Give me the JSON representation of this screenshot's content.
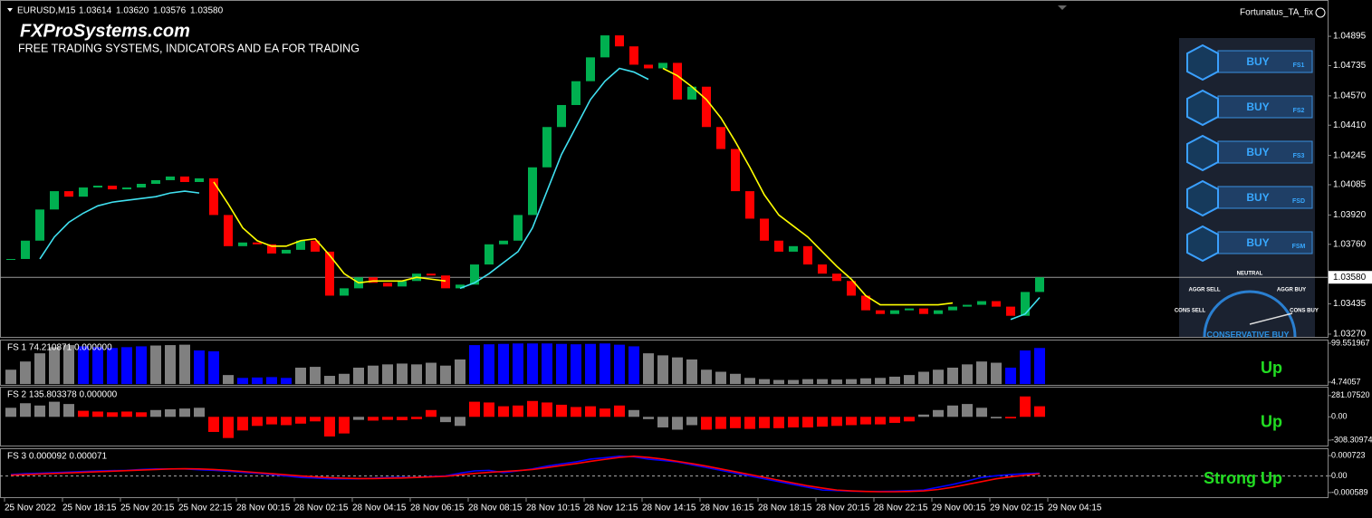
{
  "header": {
    "symbol": "EURUSD,M15",
    "open": "1.03614",
    "high": "1.03620",
    "low": "1.03576",
    "close": "1.03580"
  },
  "watermark": {
    "title": "FXProSystems.com",
    "subtitle": "FREE TRADING SYSTEMS, INDICATORS AND EA FOR TRADING"
  },
  "indicator_name": "Fortunatus_TA_fix",
  "price_chart": {
    "type": "candlestick",
    "candles": {
      "close": [
        1.0368,
        1.0378,
        1.0395,
        1.0405,
        1.0402,
        1.0407,
        1.0408,
        1.0406,
        1.0407,
        1.0409,
        1.0411,
        1.0413,
        1.041,
        1.0412,
        1.0392,
        1.0375,
        1.0377,
        1.0376,
        1.0371,
        1.0373,
        1.0378,
        1.0372,
        1.0348,
        1.0352,
        1.0358,
        1.0355,
        1.0353,
        1.0356,
        1.036,
        1.0359,
        1.0352,
        1.0354,
        1.0365,
        1.0376,
        1.0378,
        1.0392,
        1.0418,
        1.044,
        1.0452,
        1.0465,
        1.0478,
        1.049,
        1.0484,
        1.0474,
        1.0472,
        1.0475,
        1.0455,
        1.0462,
        1.044,
        1.0428,
        1.0405,
        1.039,
        1.0378,
        1.0372,
        1.0375,
        1.0365,
        1.036,
        1.0356,
        1.0348,
        1.034,
        1.0338,
        1.034,
        1.0341,
        1.0338,
        1.034,
        1.0342,
        1.0343,
        1.0345,
        1.0342,
        1.0337,
        1.035,
        1.0358
      ],
      "up_color": "#00b050",
      "down_color": "#ff0000"
    },
    "lines": [
      {
        "color": "#40e0f0",
        "values": [
          null,
          null,
          1.0368,
          1.038,
          1.0388,
          1.0393,
          1.0397,
          1.0399,
          1.04,
          1.0401,
          1.0402,
          1.0404,
          1.0405,
          1.0404,
          null,
          null,
          null,
          null,
          null,
          null,
          null,
          null,
          null,
          null,
          null,
          null,
          null,
          null,
          null,
          null,
          null,
          1.0352,
          1.0355,
          1.036,
          1.0366,
          1.0372,
          1.0385,
          1.0405,
          1.0425,
          1.044,
          1.0455,
          1.0465,
          1.0472,
          1.047,
          1.0466,
          null,
          null,
          null,
          null,
          null,
          null,
          null,
          null,
          null,
          null,
          null,
          null,
          null,
          null,
          null,
          null,
          null,
          null,
          null,
          null,
          null,
          null,
          null,
          null,
          1.0335,
          1.0338,
          1.0347
        ]
      },
      {
        "color": "#ffff00",
        "values": [
          null,
          null,
          null,
          null,
          null,
          null,
          null,
          null,
          null,
          null,
          null,
          null,
          null,
          null,
          1.041,
          1.0398,
          1.0385,
          1.0378,
          1.0375,
          1.0375,
          1.0378,
          1.0379,
          1.037,
          1.036,
          1.0355,
          1.0356,
          1.0356,
          1.0356,
          1.0358,
          1.0357,
          1.0356,
          null,
          null,
          null,
          null,
          null,
          null,
          null,
          null,
          null,
          null,
          null,
          null,
          null,
          null,
          1.0472,
          1.0468,
          1.0462,
          1.0455,
          1.0445,
          1.0432,
          1.0418,
          1.0403,
          1.0392,
          1.0386,
          1.038,
          1.0372,
          1.0364,
          1.0357,
          1.0348,
          1.0343,
          1.0343,
          1.0343,
          1.0343,
          1.0343,
          1.0344,
          null,
          null,
          null,
          null,
          null,
          null
        ]
      }
    ],
    "ylim": [
      1.03255,
      1.05093
    ],
    "yticks": [
      1.04895,
      1.04735,
      {
        "value": 1.0457,
        "label": "1.04570"
      },
      {
        "value": 1.0441,
        "label": "1.04410"
      },
      1.04245,
      1.04085,
      {
        "value": 1.0392,
        "label": "1.03920"
      },
      {
        "value": 1.0376,
        "label": "1.03760"
      },
      1.03435,
      {
        "value": 1.0327,
        "label": "1.03270"
      }
    ],
    "current_price": {
      "value": 1.0358,
      "label": "1.03580"
    }
  },
  "indicators": [
    {
      "type": "histogram",
      "label": "FS 1 74.210871 0.000000",
      "signal": "Up",
      "ylim": [
        -2,
        104
      ],
      "yticks": [
        99.551967,
        4.74057
      ],
      "values": [
        35,
        55,
        75,
        90,
        95,
        92,
        90,
        88,
        90,
        92,
        94,
        95,
        96,
        82,
        80,
        22,
        15,
        16,
        17,
        15,
        40,
        42,
        20,
        25,
        40,
        45,
        48,
        50,
        48,
        52,
        45,
        60,
        95,
        97,
        98,
        99,
        99,
        99,
        98,
        97,
        98,
        99,
        96,
        92,
        75,
        70,
        65,
        60,
        35,
        30,
        25,
        15,
        12,
        10,
        10,
        12,
        12,
        11,
        12,
        14,
        15,
        18,
        22,
        30,
        35,
        40,
        48,
        55,
        52,
        40,
        82,
        88
      ],
      "colors": [
        "gray",
        "gray",
        "gray",
        "gray",
        "gray",
        "blue",
        "blue",
        "blue",
        "blue",
        "blue",
        "gray",
        "gray",
        "gray",
        "blue",
        "blue",
        "gray",
        "blue",
        "blue",
        "blue",
        "blue",
        "gray",
        "gray",
        "gray",
        "gray",
        "gray",
        "gray",
        "gray",
        "gray",
        "gray",
        "gray",
        "gray",
        "gray",
        "blue",
        "blue",
        "blue",
        "blue",
        "blue",
        "blue",
        "blue",
        "blue",
        "blue",
        "blue",
        "blue",
        "blue",
        "gray",
        "gray",
        "gray",
        "gray",
        "gray",
        "gray",
        "gray",
        "gray",
        "gray",
        "gray",
        "gray",
        "gray",
        "gray",
        "gray",
        "gray",
        "gray",
        "gray",
        "gray",
        "gray",
        "gray",
        "gray",
        "gray",
        "gray",
        "gray",
        "gray",
        "blue",
        "blue",
        "blue"
      ]
    },
    {
      "type": "histogram",
      "label": "FS 2 135.803378 0.000000",
      "signal": "Up",
      "ylim": [
        -380,
        375
      ],
      "yticks": [
        {
          "value": 281.0752,
          "label": "281.07520"
        },
        {
          "value": 0,
          "label": "0.00"
        },
        -308.30974
      ],
      "values": [
        120,
        180,
        150,
        200,
        170,
        80,
        70,
        60,
        70,
        60,
        90,
        100,
        110,
        120,
        -200,
        -280,
        -180,
        -120,
        -100,
        -110,
        -90,
        -60,
        -260,
        -220,
        -40,
        -50,
        -40,
        -45,
        -30,
        90,
        -70,
        -120,
        200,
        190,
        140,
        150,
        210,
        190,
        160,
        130,
        140,
        110,
        150,
        90,
        -30,
        -140,
        -170,
        -110,
        -170,
        -160,
        -150,
        -160,
        -150,
        -150,
        -140,
        -140,
        -130,
        -120,
        -110,
        -100,
        -100,
        -80,
        -60,
        30,
        90,
        150,
        170,
        120,
        -20,
        -20,
        270,
        140
      ],
      "colors": [
        "gray",
        "gray",
        "gray",
        "gray",
        "gray",
        "red",
        "red",
        "red",
        "red",
        "red",
        "gray",
        "gray",
        "gray",
        "gray",
        "red",
        "red",
        "red",
        "red",
        "red",
        "red",
        "red",
        "red",
        "red",
        "red",
        "gray",
        "red",
        "red",
        "red",
        "red",
        "red",
        "gray",
        "gray",
        "red",
        "red",
        "red",
        "red",
        "red",
        "red",
        "red",
        "red",
        "red",
        "red",
        "red",
        "gray",
        "gray",
        "gray",
        "gray",
        "gray",
        "red",
        "red",
        "red",
        "red",
        "red",
        "red",
        "red",
        "red",
        "red",
        "red",
        "red",
        "red",
        "red",
        "red",
        "red",
        "gray",
        "gray",
        "gray",
        "gray",
        "gray",
        "gray",
        "red",
        "red",
        "red"
      ]
    },
    {
      "type": "line",
      "label": "FS 3 0.000092 0.000071",
      "signal": "Strong Up",
      "ylim": [
        -0.000753,
        0.00092
      ],
      "yticks": [
        0.000723,
        {
          "value": 0,
          "label": "0.00"
        },
        -0.000589
      ],
      "series": [
        {
          "color": "#0000ff",
          "values": [
            5e-05,
            8e-05,
            0.0001,
            0.00012,
            0.00014,
            0.00016,
            0.00018,
            0.00019,
            0.0002,
            0.00023,
            0.00025,
            0.00025,
            0.00025,
            0.00022,
            0.0002,
            0.00017,
            0.00013,
            0.0001,
            5e-05,
            0,
            -5e-05,
            -7e-05,
            -0.0001,
            -0.0001,
            -0.0001,
            -8e-05,
            -6e-05,
            -5e-05,
            -5e-05,
            -2e-05,
            0,
            0.0001,
            0.00018,
            0.0002,
            0.00012,
            0.00018,
            0.00025,
            0.00035,
            0.00043,
            0.0005,
            0.0006,
            0.00065,
            0.0007,
            0.00068,
            0.0006,
            0.00055,
            0.0005,
            0.0004,
            0.0003,
            0.0002,
            0.0001,
            0,
            -0.0001,
            -0.0002,
            -0.0003,
            -0.0004,
            -0.0005,
            -0.00052,
            -0.00054,
            -0.00055,
            -0.00055,
            -0.00054,
            -0.00052,
            -0.0005,
            -0.0004,
            -0.0003,
            -0.00018,
            -5e-05,
            1e-05,
            5e-05,
            8e-05,
            0.0001
          ]
        },
        {
          "color": "#ff0000",
          "values": [
            3e-05,
            5e-05,
            7e-05,
            9e-05,
            0.00011,
            0.00013,
            0.00015,
            0.00017,
            0.00019,
            0.00021,
            0.00023,
            0.00025,
            0.00026,
            0.00025,
            0.00023,
            0.0002,
            0.00016,
            0.00012,
            8e-05,
            4e-05,
            0,
            -3e-05,
            -6e-05,
            -8e-05,
            -9e-05,
            -9e-05,
            -8e-05,
            -7e-05,
            -5e-05,
            -3e-05,
            -1e-05,
            4e-05,
            9e-05,
            0.00013,
            0.00016,
            0.00019,
            0.00023,
            0.0003,
            0.00037,
            0.00044,
            0.00052,
            0.00059,
            0.00066,
            0.0007,
            0.00066,
            0.0006,
            0.00052,
            0.00044,
            0.00035,
            0.00025,
            0.00015,
            5e-05,
            -5e-05,
            -0.00015,
            -0.00025,
            -0.00035,
            -0.00043,
            -0.0005,
            -0.00053,
            -0.00055,
            -0.00056,
            -0.00056,
            -0.00055,
            -0.00053,
            -0.00048,
            -0.0004,
            -0.0003,
            -0.0002,
            -0.0001,
            -3e-05,
            3e-05,
            8e-05
          ]
        }
      ]
    }
  ],
  "time_axis": [
    "25 Nov 2022",
    "25 Nov 18:15",
    "25 Nov 20:15",
    "25 Nov 22:15",
    "28 Nov 00:15",
    "28 Nov 02:15",
    "28 Nov 04:15",
    "28 Nov 06:15",
    "28 Nov 08:15",
    "28 Nov 10:15",
    "28 Nov 12:15",
    "28 Nov 14:15",
    "28 Nov 16:15",
    "28 Nov 18:15",
    "28 Nov 20:15",
    "28 Nov 22:15",
    "29 Nov 00:15",
    "29 Nov 02:15",
    "29 Nov 04:15"
  ],
  "panel": {
    "buttons": [
      {
        "action": "BUY",
        "code": "FS1"
      },
      {
        "action": "BUY",
        "code": "FS2"
      },
      {
        "action": "BUY",
        "code": "FS3"
      },
      {
        "action": "BUY",
        "code": "FSD"
      },
      {
        "action": "BUY",
        "code": "FSM"
      }
    ],
    "gauge": {
      "neutral": "NEUTRAL",
      "aggr_sell": "AGGR SELL",
      "aggr_buy": "AGGR BUY",
      "cons_sell": "CONS SELL",
      "cons_buy": "CONS BUY",
      "status": "CONSERVATIVE BUY"
    }
  }
}
